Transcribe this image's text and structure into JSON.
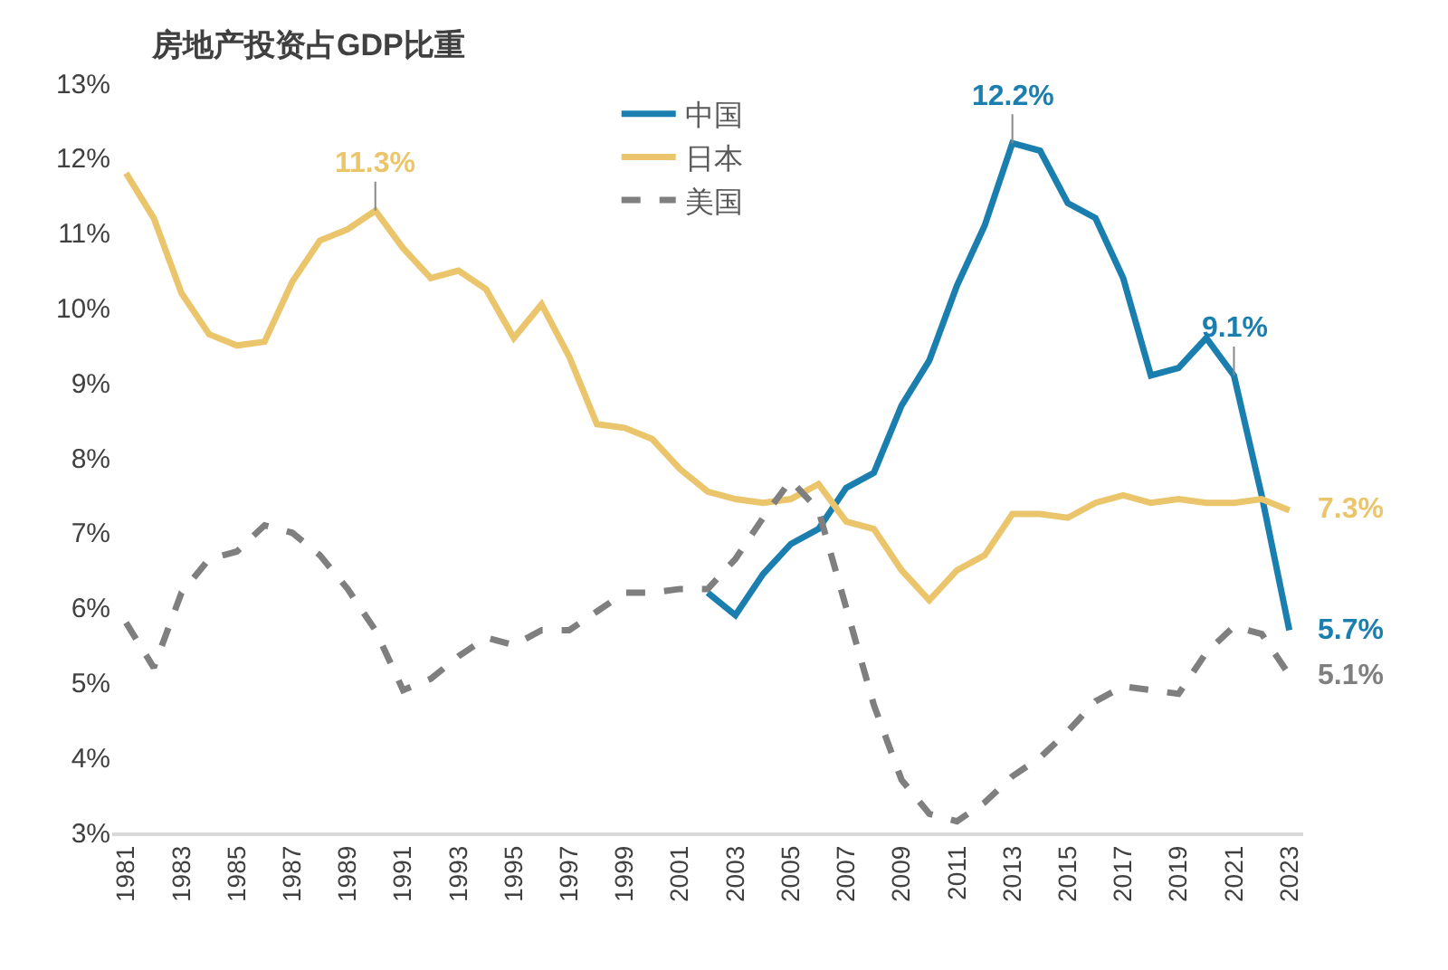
{
  "chart_data": {
    "type": "line",
    "title": "房地产投资占GDP比重",
    "x": [
      1981,
      1982,
      1983,
      1984,
      1985,
      1986,
      1987,
      1988,
      1989,
      1990,
      1991,
      1992,
      1993,
      1994,
      1995,
      1996,
      1997,
      1998,
      1999,
      2000,
      2001,
      2002,
      2003,
      2004,
      2005,
      2006,
      2007,
      2008,
      2009,
      2010,
      2011,
      2012,
      2013,
      2014,
      2015,
      2016,
      2017,
      2018,
      2019,
      2020,
      2021,
      2022,
      2023
    ],
    "series": [
      {
        "name": "中国",
        "color": "#1a7fae",
        "line_style": "solid",
        "values": [
          null,
          null,
          null,
          null,
          null,
          null,
          null,
          null,
          null,
          null,
          null,
          null,
          null,
          null,
          null,
          null,
          null,
          null,
          null,
          null,
          null,
          6.2,
          5.9,
          6.45,
          6.85,
          7.05,
          7.6,
          7.8,
          8.7,
          9.3,
          10.3,
          11.1,
          12.2,
          12.1,
          11.4,
          11.2,
          10.4,
          9.1,
          9.2,
          9.6,
          9.1,
          7.5,
          5.7
        ]
      },
      {
        "name": "日本",
        "color": "#ebc56b",
        "line_style": "solid",
        "values": [
          11.8,
          11.2,
          10.2,
          9.65,
          9.5,
          9.55,
          10.35,
          10.9,
          11.05,
          11.3,
          10.8,
          10.4,
          10.5,
          10.25,
          9.6,
          10.05,
          9.35,
          8.45,
          8.4,
          8.25,
          7.85,
          7.55,
          7.45,
          7.4,
          7.45,
          7.65,
          7.15,
          7.05,
          6.5,
          6.1,
          6.5,
          6.7,
          7.25,
          7.25,
          7.2,
          7.4,
          7.5,
          7.4,
          7.45,
          7.4,
          7.4,
          7.45,
          7.3
        ]
      },
      {
        "name": "美国",
        "color": "#7f7f7f",
        "line_style": "dashed",
        "values": [
          5.8,
          5.2,
          6.2,
          6.65,
          6.75,
          7.1,
          7.0,
          6.7,
          6.25,
          5.7,
          4.9,
          5.05,
          5.35,
          5.6,
          5.5,
          5.7,
          5.7,
          5.95,
          6.2,
          6.2,
          6.25,
          6.25,
          6.65,
          7.2,
          7.7,
          7.3,
          6.0,
          4.7,
          3.7,
          3.25,
          3.15,
          3.4,
          3.75,
          4.0,
          4.35,
          4.75,
          4.95,
          4.9,
          4.85,
          5.4,
          5.75,
          5.65,
          5.1
        ]
      }
    ],
    "xlim": [
      1980.5,
      2023.5
    ],
    "xticks": [
      1981,
      1983,
      1985,
      1987,
      1989,
      1991,
      1993,
      1995,
      1997,
      1999,
      2001,
      2003,
      2005,
      2007,
      2009,
      2011,
      2013,
      2015,
      2017,
      2019,
      2021,
      2023
    ],
    "ylim": [
      3,
      13
    ],
    "yticks": [
      {
        "value": 3,
        "label": "3%"
      },
      {
        "value": 4,
        "label": "4%"
      },
      {
        "value": 5,
        "label": "5%"
      },
      {
        "value": 6,
        "label": "6%"
      },
      {
        "value": 7,
        "label": "7%"
      },
      {
        "value": 8,
        "label": "8%"
      },
      {
        "value": 9,
        "label": "9%"
      },
      {
        "value": 10,
        "label": "10%"
      },
      {
        "value": 11,
        "label": "11%"
      },
      {
        "value": 12,
        "label": "12%"
      },
      {
        "value": 13,
        "label": "13%"
      }
    ],
    "annotations": [
      {
        "text": "11.3%",
        "x": 1990,
        "y": 11.3
      },
      {
        "text": "12.2%",
        "x": 2013,
        "y": 12.2
      },
      {
        "text": "9.1%",
        "x": 2021,
        "y": 9.1
      },
      {
        "text": "7.3%",
        "x": 2023,
        "y": 7.3
      },
      {
        "text": "5.7%",
        "x": 2023,
        "y": 5.7
      },
      {
        "text": "5.1%",
        "x": 2023,
        "y": 5.1
      }
    ],
    "grid": false,
    "legend": "top",
    "marker": "none"
  }
}
